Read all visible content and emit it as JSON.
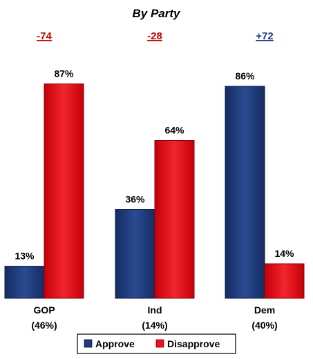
{
  "chart_data": {
    "type": "bar",
    "title": "By Party",
    "categories": [
      "GOP",
      "Ind",
      "Dem"
    ],
    "category_sublabels": [
      "(46%)",
      "(14%)",
      "(40%)"
    ],
    "net_labels": [
      "-74",
      "-28",
      "+72"
    ],
    "net_colors": [
      "#c00000",
      "#c00000",
      "#1f3a7a"
    ],
    "series": [
      {
        "name": "Approve",
        "values": [
          13,
          36,
          86
        ],
        "labels": [
          "13%",
          "36%",
          "86%"
        ],
        "color": "#1f3a7a"
      },
      {
        "name": "Disapprove",
        "values": [
          87,
          64,
          14
        ],
        "labels": [
          "87%",
          "64%",
          "14%"
        ],
        "color": "#e8141b"
      }
    ],
    "ylim": [
      0,
      100
    ],
    "grid": false,
    "legend_placement": "bottom-center"
  }
}
